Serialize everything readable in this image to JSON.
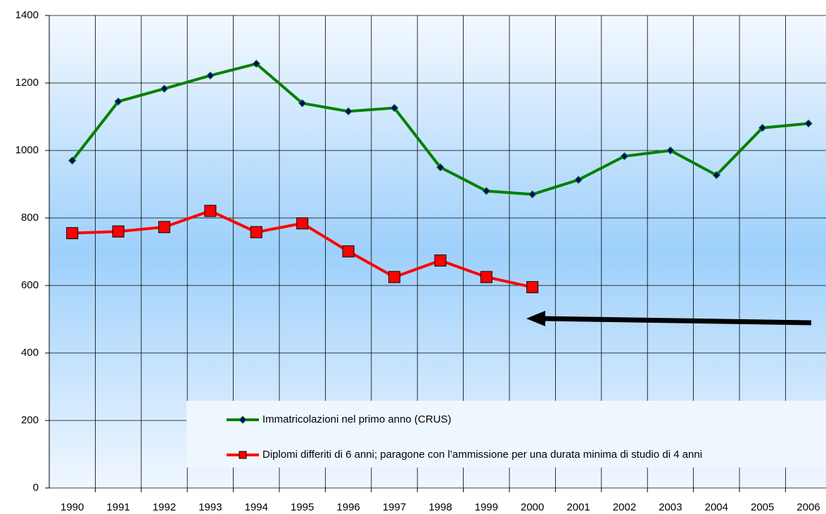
{
  "chart_data": {
    "type": "line",
    "categories": [
      "1990",
      "1991",
      "1992",
      "1993",
      "1994",
      "1995",
      "1996",
      "1997",
      "1998",
      "1999",
      "2000",
      "2001",
      "2002",
      "2003",
      "2004",
      "2005",
      "2006"
    ],
    "series": [
      {
        "name": "Immatricolazioni nel primo anno (CRUS)",
        "color": "#008000",
        "marker": "diamond",
        "values": [
          970,
          1145,
          1183,
          1222,
          1257,
          1140,
          1116,
          1126,
          950,
          880,
          870,
          913,
          983,
          1000,
          927,
          1067,
          1080
        ]
      },
      {
        "name": "Diplomi differiti di 6 anni; paragone con l’ammissione per una durata minima di studio di 4 anni",
        "color": "#ff0000",
        "marker": "square",
        "values": [
          755,
          760,
          773,
          821,
          758,
          784,
          701,
          625,
          674,
          625,
          595,
          null,
          null,
          null,
          null,
          null,
          null
        ]
      }
    ],
    "ylim": [
      0,
      1400
    ],
    "yticks": [
      0,
      200,
      400,
      600,
      800,
      1000,
      1200,
      1400
    ],
    "grid": true,
    "legend": "lower right"
  }
}
